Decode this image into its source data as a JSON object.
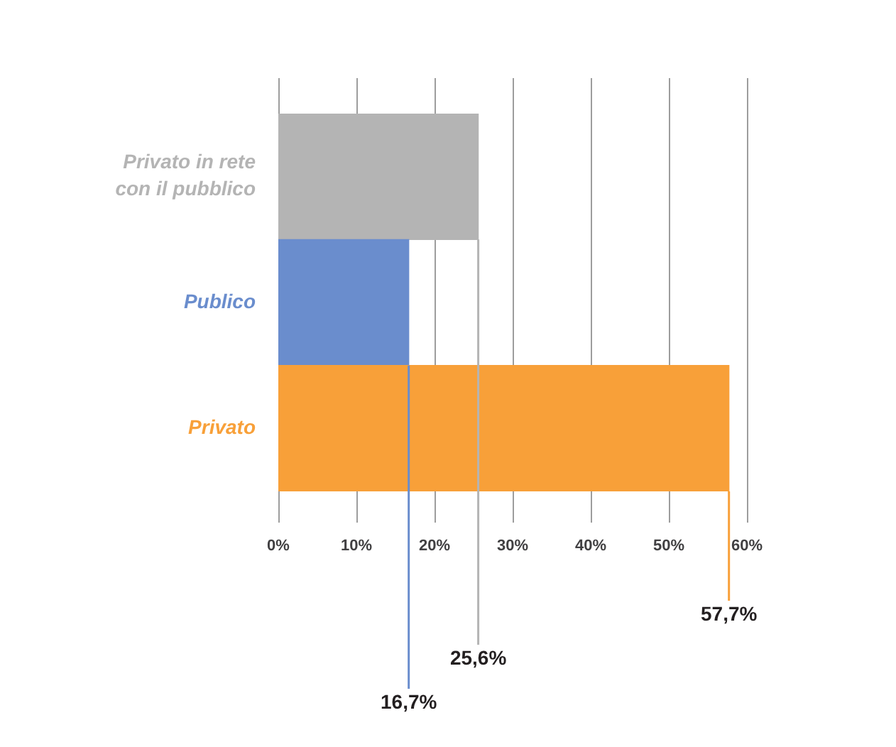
{
  "chart_data": {
    "type": "bar",
    "orientation": "horizontal",
    "categories": [
      "Privato in rete con il pubblico",
      "Publico",
      "Privato"
    ],
    "values": [
      25.6,
      16.7,
      57.7
    ],
    "colors": [
      "#b4b4b4",
      "#6a8dcd",
      "#f8a039"
    ],
    "value_labels": [
      "25,6%",
      "16,7%",
      "57,7%"
    ],
    "xlim": [
      0,
      60
    ],
    "xticks": [
      {
        "value": 0,
        "label": "0%"
      },
      {
        "value": 10,
        "label": "10%"
      },
      {
        "value": 20,
        "label": "20%"
      },
      {
        "value": 30,
        "label": "30%"
      },
      {
        "value": 40,
        "label": "40%"
      },
      {
        "value": 50,
        "label": "50%"
      },
      {
        "value": 60,
        "label": "60%"
      }
    ],
    "grid": "x",
    "legend": false
  }
}
